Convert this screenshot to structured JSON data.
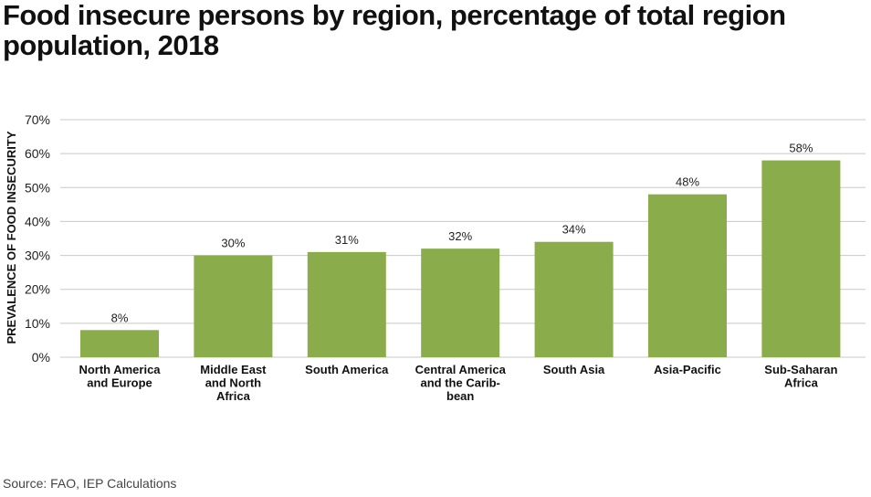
{
  "chart_data": {
    "type": "bar",
    "title": "Food insecure persons by region, percentage of total region population, 2018",
    "ylabel": "PREVALENCE OF FOOD INSECURITY",
    "xlabel": "",
    "categories": [
      "North America and Europe",
      "Middle East and North Africa",
      "South America",
      "Central America and the Carib-bean",
      "South Asia",
      "Asia-Pacific",
      "Sub-Saharan Africa"
    ],
    "category_lines": [
      [
        "North America",
        "and Europe"
      ],
      [
        "Middle East",
        "and North",
        "Africa"
      ],
      [
        "South America"
      ],
      [
        "Central America",
        "and the Carib-",
        "bean"
      ],
      [
        "South Asia"
      ],
      [
        "Asia-Pacific"
      ],
      [
        "Sub-Saharan",
        "Africa"
      ]
    ],
    "values": [
      8,
      30,
      31,
      32,
      34,
      48,
      58
    ],
    "data_labels": [
      "8%",
      "30%",
      "31%",
      "32%",
      "34%",
      "48%",
      "58%"
    ],
    "ylim": [
      0,
      70
    ],
    "yticks": [
      0,
      10,
      20,
      30,
      40,
      50,
      60,
      70
    ],
    "ytick_labels": [
      "0%",
      "10%",
      "20%",
      "30%",
      "40%",
      "50%",
      "60%",
      "70%"
    ],
    "grid": true,
    "bar_color": "#8aac4a",
    "grid_color": "#c8c8c8"
  },
  "source": "Source: FAO, IEP Calculations"
}
